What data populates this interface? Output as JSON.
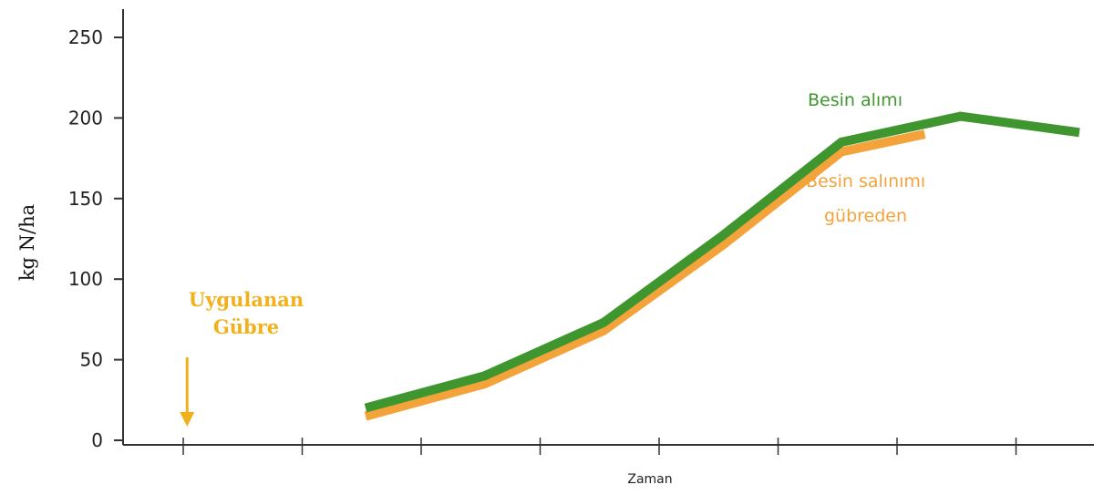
{
  "chart_data": {
    "type": "line",
    "title": "",
    "xlabel": "Zaman",
    "ylabel": "kg N/ha",
    "ylim": [
      0,
      250
    ],
    "yticks": [
      "0",
      "50",
      "100",
      "150",
      "200",
      "250"
    ],
    "x_tick_count": 8,
    "grid": false,
    "colors": {
      "uptake": "#3f962f",
      "release": "#f3a33a",
      "fertilizer": "#f2b11b",
      "axis": "#333333"
    },
    "series": [
      {
        "key": "uptake",
        "x": [
          2,
          3,
          4,
          5,
          6,
          7,
          8
        ],
        "values": [
          20,
          40,
          73,
          127,
          185,
          201,
          191
        ]
      },
      {
        "key": "release",
        "x": [
          2,
          3,
          4,
          5,
          6,
          6.7
        ],
        "values": [
          15,
          35,
          68,
          121,
          179,
          190
        ]
      }
    ],
    "annotations": {
      "fertilizer_line1": "Uygulanan",
      "fertilizer_line2": "Gübre",
      "fertilizer_x": 0.5,
      "uptake_label": "Besin alımı",
      "release_line1": "Besin salınımı",
      "release_line2": "gübreden"
    }
  }
}
